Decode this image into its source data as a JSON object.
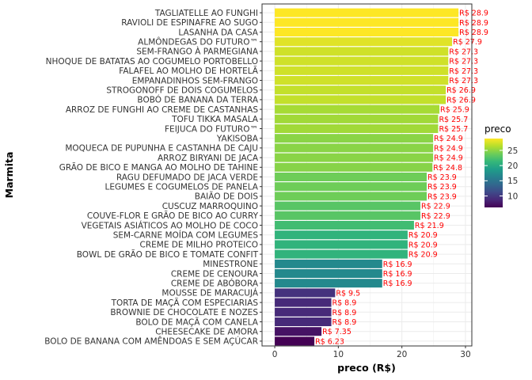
{
  "chart_data": {
    "type": "bar",
    "orientation": "horizontal",
    "xlabel": "preco (R$)",
    "ylabel": "Marmita",
    "xlim": [
      -2,
      31
    ],
    "xticks": [
      0,
      10,
      20,
      30
    ],
    "grid": true,
    "legend_position": "right",
    "label_prefix": "R$ ",
    "label_color": "#ff0000",
    "categories": [
      "TAGLIATELLE AO FUNGHI",
      "RAVIOLI DE ESPINAFRE AO SUGO",
      "LASANHA DA CASA",
      "ALMÔNDEGAS DO FUTURO™",
      "SEM-FRANGO À PARMEGIANA",
      "NHOQUE DE BATATAS AO COGUMELO PORTOBELLO",
      "FALAFEL AO MOLHO DE HORTELÃ",
      "EMPANADINHOS SEM-FRANGO",
      "STROGONOFF DE DOIS COGUMELOS",
      "BOBÓ DE BANANA DA TERRA",
      "ARROZ DE FUNGHI AO CREME DE CASTANHAS",
      "TOFU TIKKA MASALA",
      "FEIJUCA DO FUTURO™",
      "YAKISOBA",
      "MOQUECA DE PUPUNHA E CASTANHA DE CAJU",
      "ARROZ BIRYANI DE JACA",
      "GRÃO DE BICO E MANGA AO MOLHO DE TAHINE",
      "RAGU DEFUMADO DE JACA VERDE",
      "LEGUMES E COGUMELOS DE PANELA",
      "BAIÃO DE DOIS",
      "CUSCUZ MARROQUINO",
      "COUVE-FLOR E GRÃO DE BICO AO CURRY",
      "VEGETAIS ASIÁTICOS AO MOLHO DE COCO",
      "SEM-CARNE MOÍDA COM LEGUMES",
      "CREME DE MILHO PROTEICO",
      "BOWL DE GRÃO DE BICO E TOMATE CONFIT",
      "MINESTRONE",
      "CREME DE CENOURA",
      "CREME DE ABÓBORA",
      "MOUSSE DE MARACUJÁ",
      "TORTA DE MAÇÃ COM ESPECIARIAS",
      "BROWNIE DE CHOCOLATE E NOZES",
      "BOLO DE MAÇÃ COM CANELA",
      "CHEESECAKE DE AMORA",
      "BOLO DE BANANA COM AMÊNDOAS E SEM AÇÚCAR"
    ],
    "values": [
      28.9,
      28.9,
      28.9,
      27.9,
      27.3,
      27.3,
      27.3,
      27.3,
      26.9,
      26.9,
      25.9,
      25.7,
      25.7,
      24.9,
      24.9,
      24.9,
      24.8,
      23.9,
      23.9,
      23.9,
      22.9,
      22.9,
      21.9,
      20.9,
      20.9,
      20.9,
      16.9,
      16.9,
      16.9,
      9.5,
      8.9,
      8.9,
      8.9,
      7.35,
      6.23
    ],
    "legend": {
      "title": "preco",
      "ticks": [
        10,
        15,
        20,
        25
      ],
      "range": [
        6.23,
        28.9
      ],
      "colormap": [
        "#440154",
        "#482878",
        "#3e4a89",
        "#31688e",
        "#26828e",
        "#1f9e89",
        "#35b779",
        "#6dcd59",
        "#b4de2c",
        "#fde725"
      ]
    }
  }
}
